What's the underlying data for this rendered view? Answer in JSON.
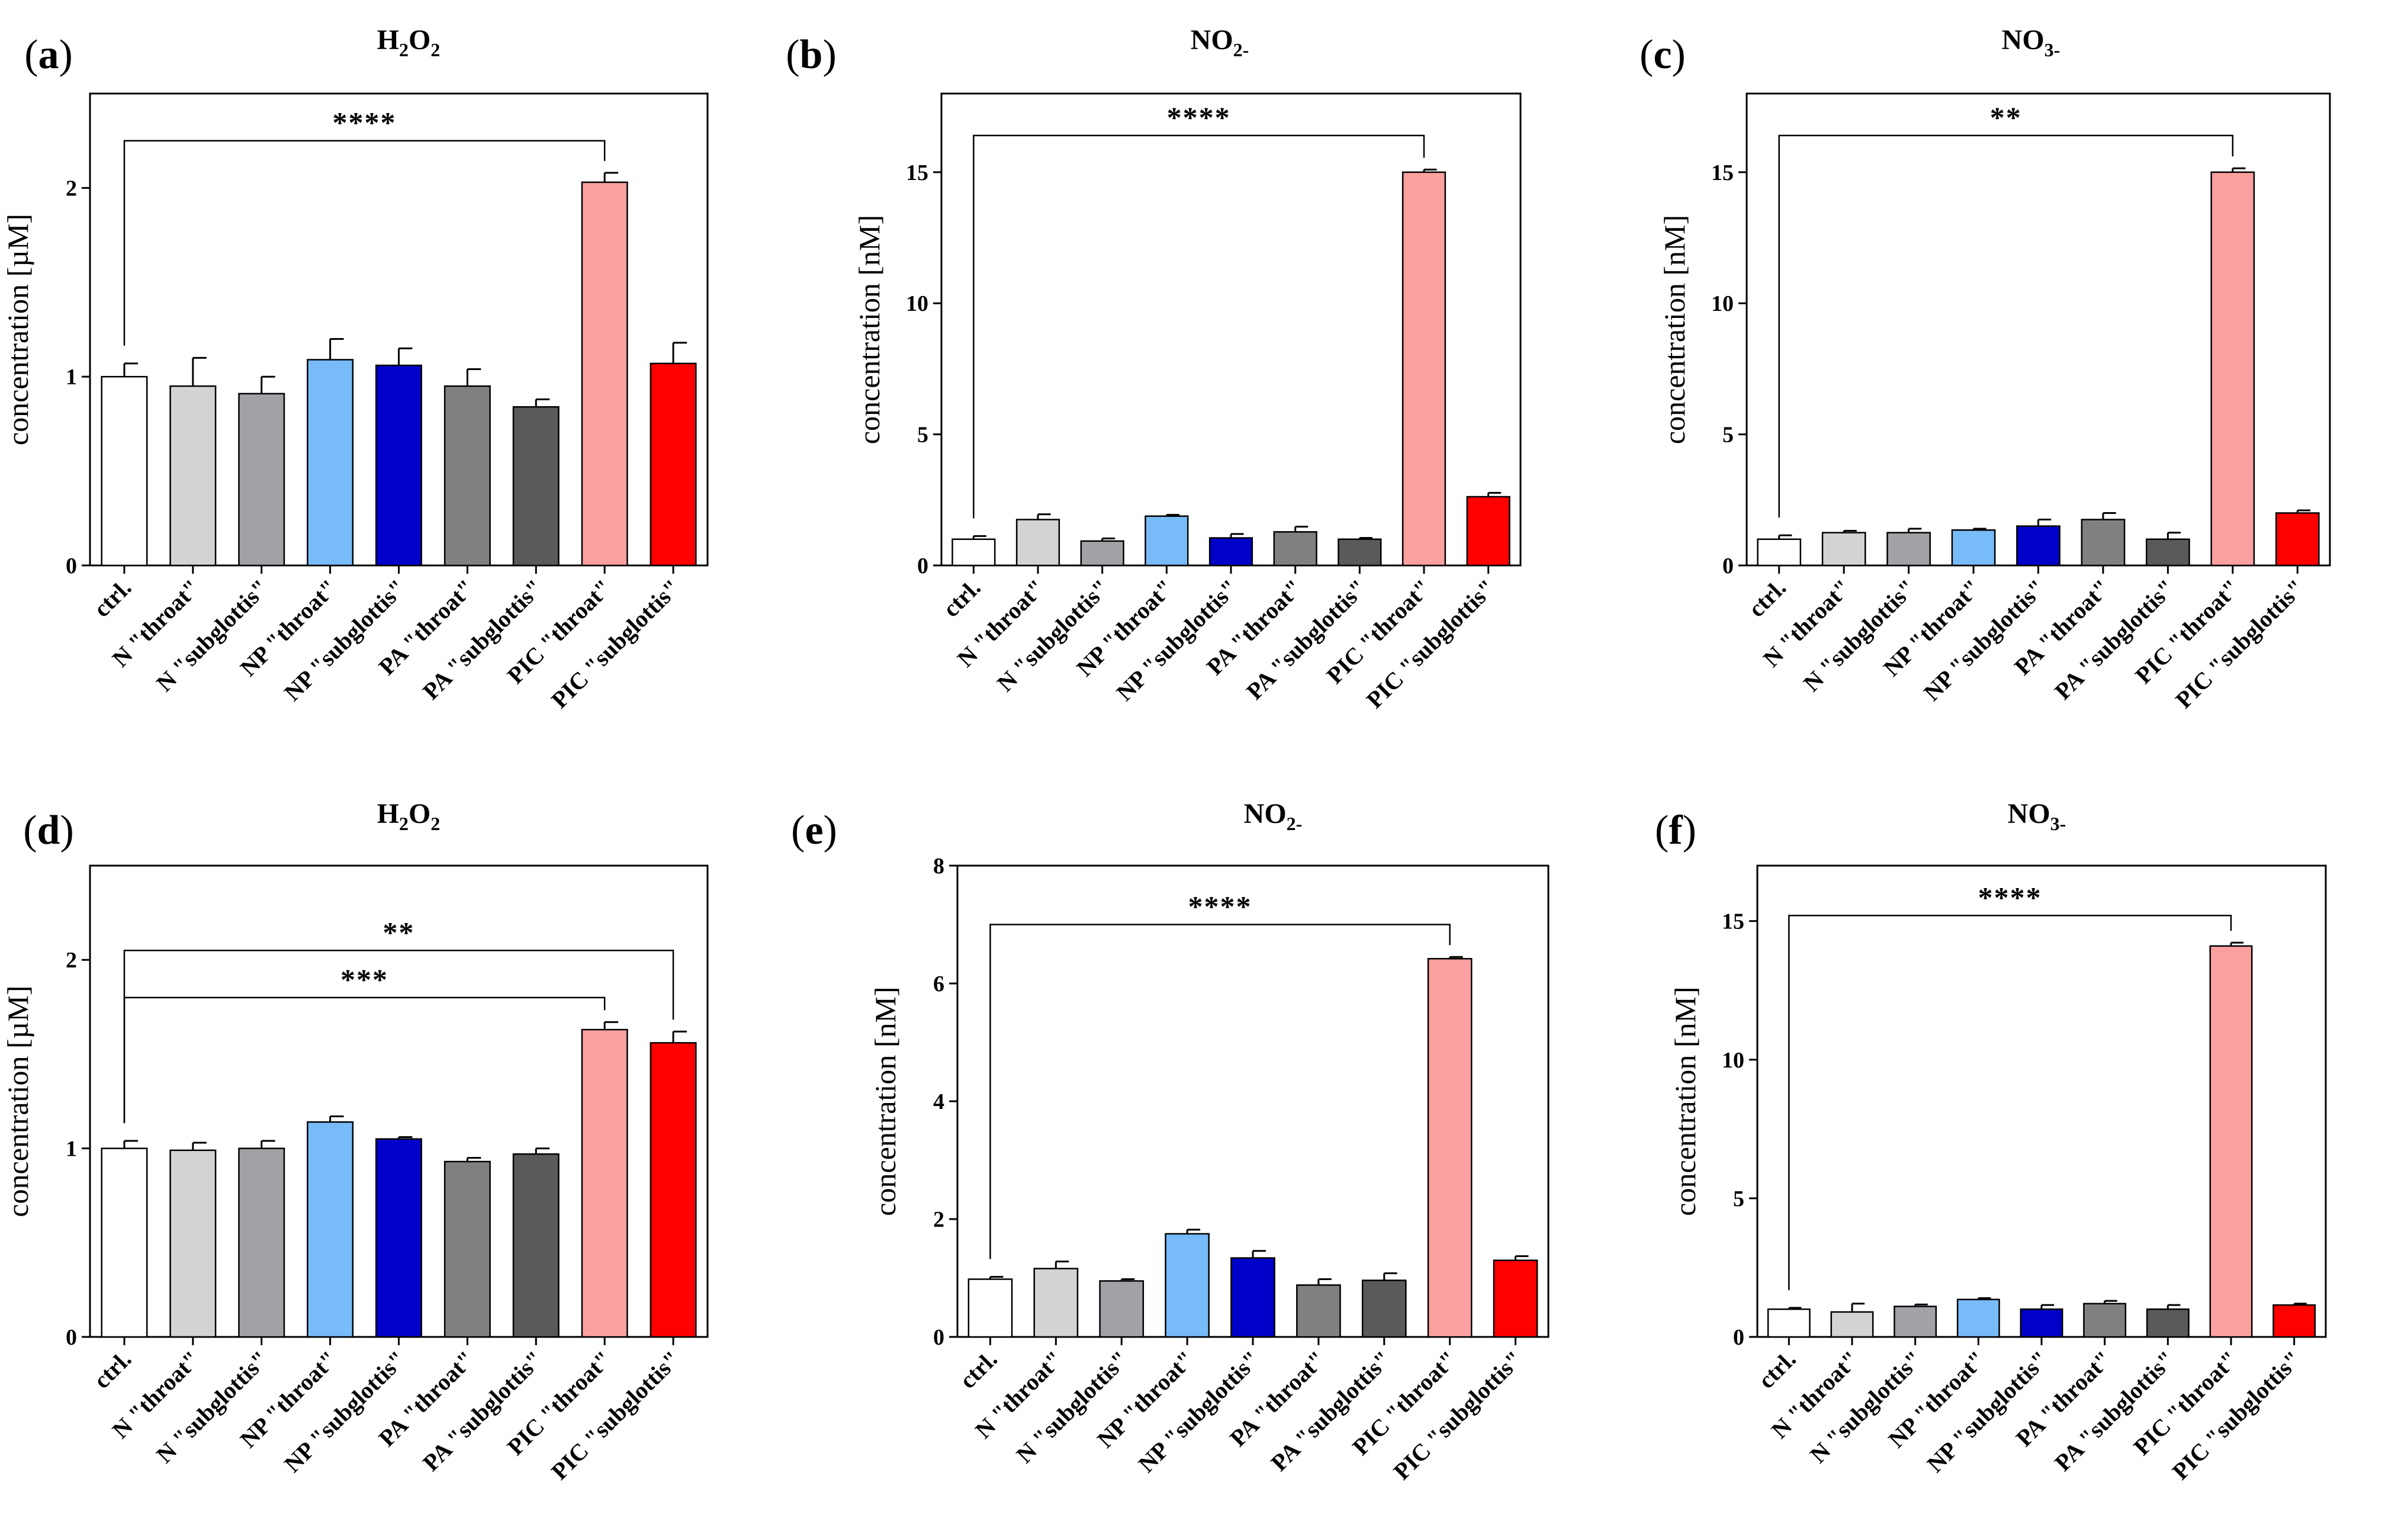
{
  "colors": {
    "ctrl": "#ffffff",
    "n_throat": "#d3d3d3",
    "n_subglottis": "#a1a1a6",
    "np_throat": "#77bbf8",
    "np_subglottis": "#0000c8",
    "pa_throat": "#808080",
    "pa_subglottis": "#5a5a5a",
    "pic_throat": "#fba0a0",
    "pic_subglottis": "#ff0000"
  },
  "chart_data": [
    {
      "panel": "a",
      "type": "bar",
      "title": "H2O2",
      "title_base": "H",
      "title_sub1": "2",
      "title_mid": "O",
      "title_sub2": "2",
      "title_tail": "",
      "ylabel": "concentration [µM]",
      "ylim": [
        0,
        2.5
      ],
      "yticks": [
        0,
        1,
        2
      ],
      "categories": [
        "ctrl.",
        "N \"throat\"",
        "N \"subglottis\"",
        "NP \"throat\"",
        "NP \"subglottis\"",
        "PA \"throat\"",
        "PA \"subglottis\"",
        "PIC \"throat\"",
        "PIC \"subglottis\""
      ],
      "values": [
        1.0,
        0.95,
        0.91,
        1.09,
        1.06,
        0.95,
        0.84,
        2.03,
        1.07
      ],
      "errors": [
        0.07,
        0.15,
        0.09,
        0.11,
        0.09,
        0.09,
        0.04,
        0.05,
        0.11
      ],
      "significance": [
        {
          "from": 0,
          "to": 7,
          "label": "****",
          "y": 2.25
        }
      ]
    },
    {
      "panel": "b",
      "type": "bar",
      "title": "NO2-",
      "title_base": "NO",
      "title_sub1": "2-",
      "title_mid": "",
      "title_sub2": "",
      "title_tail": "",
      "ylabel": "concentration [nM]",
      "ylim": [
        0,
        18
      ],
      "yticks": [
        0,
        5,
        10,
        15
      ],
      "categories": [
        "ctrl.",
        "N \"throat\"",
        "N \"subglottis\"",
        "NP \"throat\"",
        "NP \"subglottis\"",
        "PA \"throat\"",
        "PA \"subglottis\"",
        "PIC \"throat\"",
        "PIC \"subglottis\""
      ],
      "values": [
        1.0,
        1.75,
        0.93,
        1.88,
        1.05,
        1.28,
        1.0,
        15.0,
        2.62
      ],
      "errors": [
        0.12,
        0.2,
        0.1,
        0.05,
        0.15,
        0.2,
        0.05,
        0.1,
        0.15
      ],
      "significance": [
        {
          "from": 0,
          "to": 7,
          "label": "****",
          "y": 16.4
        }
      ]
    },
    {
      "panel": "c",
      "type": "bar",
      "title": "NO3-",
      "title_base": "NO",
      "title_sub1": "3-",
      "title_mid": "",
      "title_sub2": "",
      "title_tail": "",
      "ylabel": "concentration [nM]",
      "ylim": [
        0,
        18
      ],
      "yticks": [
        0,
        5,
        10,
        15
      ],
      "categories": [
        "ctrl.",
        "N \"throat\"",
        "N \"subglottis\"",
        "NP \"throat\"",
        "NP \"subglottis\"",
        "PA \"throat\"",
        "PA \"subglottis\"",
        "PIC \"throat\"",
        "PIC \"subglottis\""
      ],
      "values": [
        1.0,
        1.25,
        1.25,
        1.35,
        1.5,
        1.75,
        1.0,
        15.0,
        2.0
      ],
      "errors": [
        0.15,
        0.07,
        0.15,
        0.05,
        0.25,
        0.25,
        0.25,
        0.15,
        0.1
      ],
      "significance": [
        {
          "from": 0,
          "to": 7,
          "label": "**",
          "y": 16.4
        }
      ]
    },
    {
      "panel": "d",
      "type": "bar",
      "title": "H2O2",
      "title_base": "H",
      "title_sub1": "2",
      "title_mid": "O",
      "title_sub2": "2",
      "title_tail": "",
      "ylabel": "concentration [µM]",
      "ylim": [
        0,
        2.5
      ],
      "yticks": [
        0,
        1,
        2
      ],
      "categories": [
        "ctrl.",
        "N \"throat\"",
        "N \"subglottis\"",
        "NP \"throat\"",
        "NP \"subglottis\"",
        "PA \"throat\"",
        "PA \"subglottis\"",
        "PIC \"throat\"",
        "PIC \"subglottis\""
      ],
      "values": [
        1.0,
        0.99,
        1.0,
        1.14,
        1.05,
        0.93,
        0.97,
        1.63,
        1.56
      ],
      "errors": [
        0.04,
        0.04,
        0.04,
        0.03,
        0.01,
        0.02,
        0.03,
        0.04,
        0.06
      ],
      "significance": [
        {
          "from": 0,
          "to": 8,
          "label": "**",
          "y": 2.05
        },
        {
          "from": 0,
          "to": 7,
          "label": "***",
          "y": 1.8
        }
      ]
    },
    {
      "panel": "e",
      "type": "bar",
      "title": "NO2-",
      "title_base": "NO",
      "title_sub1": "2-",
      "title_mid": "",
      "title_sub2": "",
      "title_tail": "",
      "ylabel": "concentration [nM]",
      "ylim": [
        0,
        8
      ],
      "yticks": [
        0,
        2,
        4,
        6,
        8
      ],
      "categories": [
        "ctrl.",
        "N \"throat\"",
        "N \"subglottis\"",
        "NP \"throat\"",
        "NP \"subglottis\"",
        "PA \"throat\"",
        "PA \"subglottis\"",
        "PIC \"throat\"",
        "PIC \"subglottis\""
      ],
      "values": [
        0.98,
        1.16,
        0.95,
        1.75,
        1.34,
        0.88,
        0.96,
        6.42,
        1.3
      ],
      "errors": [
        0.04,
        0.12,
        0.03,
        0.07,
        0.12,
        0.1,
        0.12,
        0.03,
        0.07
      ],
      "significance": [
        {
          "from": 0,
          "to": 7,
          "label": "****",
          "y": 7.0
        }
      ]
    },
    {
      "panel": "f",
      "type": "bar",
      "title": "NO3-",
      "title_base": "NO",
      "title_sub1": "3-",
      "title_mid": "",
      "title_sub2": "",
      "title_tail": "",
      "ylabel": "concentration [nM]",
      "ylim": [
        0,
        17
      ],
      "yticks": [
        0,
        5,
        10,
        15
      ],
      "categories": [
        "ctrl.",
        "N \"throat\"",
        "N \"subglottis\"",
        "NP \"throat\"",
        "NP \"subglottis\"",
        "PA \"throat\"",
        "PA \"subglottis\"",
        "PIC \"throat\"",
        "PIC \"subglottis\""
      ],
      "values": [
        1.0,
        0.9,
        1.1,
        1.35,
        1.0,
        1.2,
        1.0,
        14.1,
        1.15
      ],
      "errors": [
        0.05,
        0.3,
        0.07,
        0.05,
        0.15,
        0.1,
        0.15,
        0.12,
        0.05
      ],
      "significance": [
        {
          "from": 0,
          "to": 7,
          "label": "****",
          "y": 15.2
        }
      ]
    }
  ]
}
